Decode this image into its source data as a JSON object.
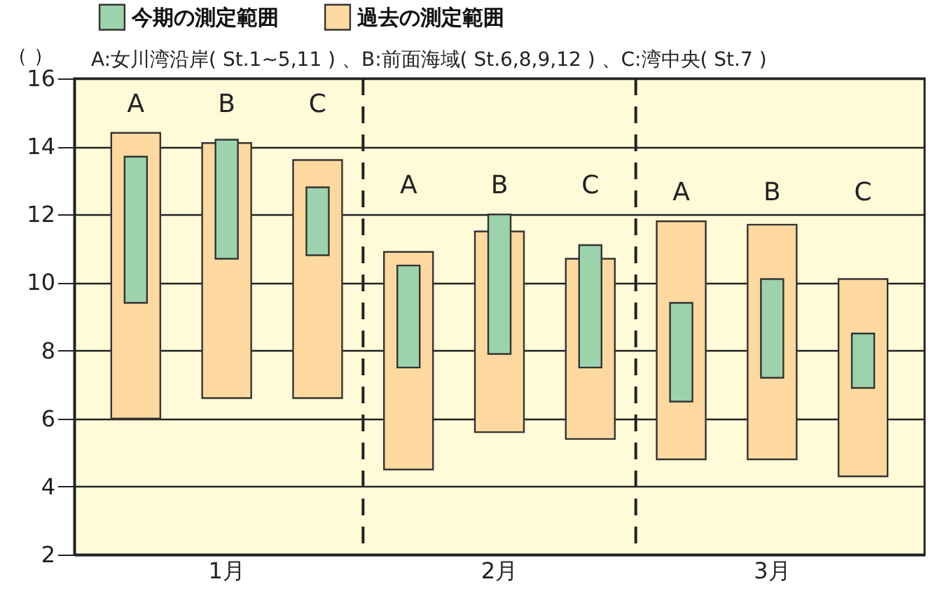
{
  "chart_data": {
    "type": "bar",
    "subtitle": "A:女川湾沿岸( St.1~5,11 ) 、B:前面海域( St.6,8,9,12 ) 、C:湾中央( St.7 )",
    "ylabel": "（ ）",
    "categories": [
      "A",
      "B",
      "C",
      "A",
      "B",
      "C",
      "A",
      "B",
      "C"
    ],
    "annotations": [
      "1月",
      "2月",
      "3月"
    ],
    "series": [
      {
        "name": "過去の測定範囲",
        "color": "#fdd9a0",
        "base": [
          6.0,
          6.6,
          6.6,
          4.5,
          5.6,
          5.4,
          4.8,
          4.8,
          4.3
        ],
        "values": [
          8.4,
          7.5,
          7.0,
          6.4,
          5.9,
          5.3,
          7.0,
          6.9,
          5.8
        ]
      },
      {
        "name": "今期の測定範囲",
        "color": "#9dd3ac",
        "base": [
          9.4,
          10.7,
          10.8,
          7.5,
          7.9,
          7.5,
          6.5,
          7.2,
          6.9
        ],
        "values": [
          4.3,
          3.5,
          2.0,
          3.0,
          4.1,
          3.6,
          2.9,
          2.9,
          1.6
        ]
      }
    ],
    "ylim": [
      2,
      16
    ],
    "yticks": [
      2,
      4,
      6,
      8,
      10,
      12,
      14,
      16
    ],
    "grid": "y",
    "legend": "top"
  }
}
